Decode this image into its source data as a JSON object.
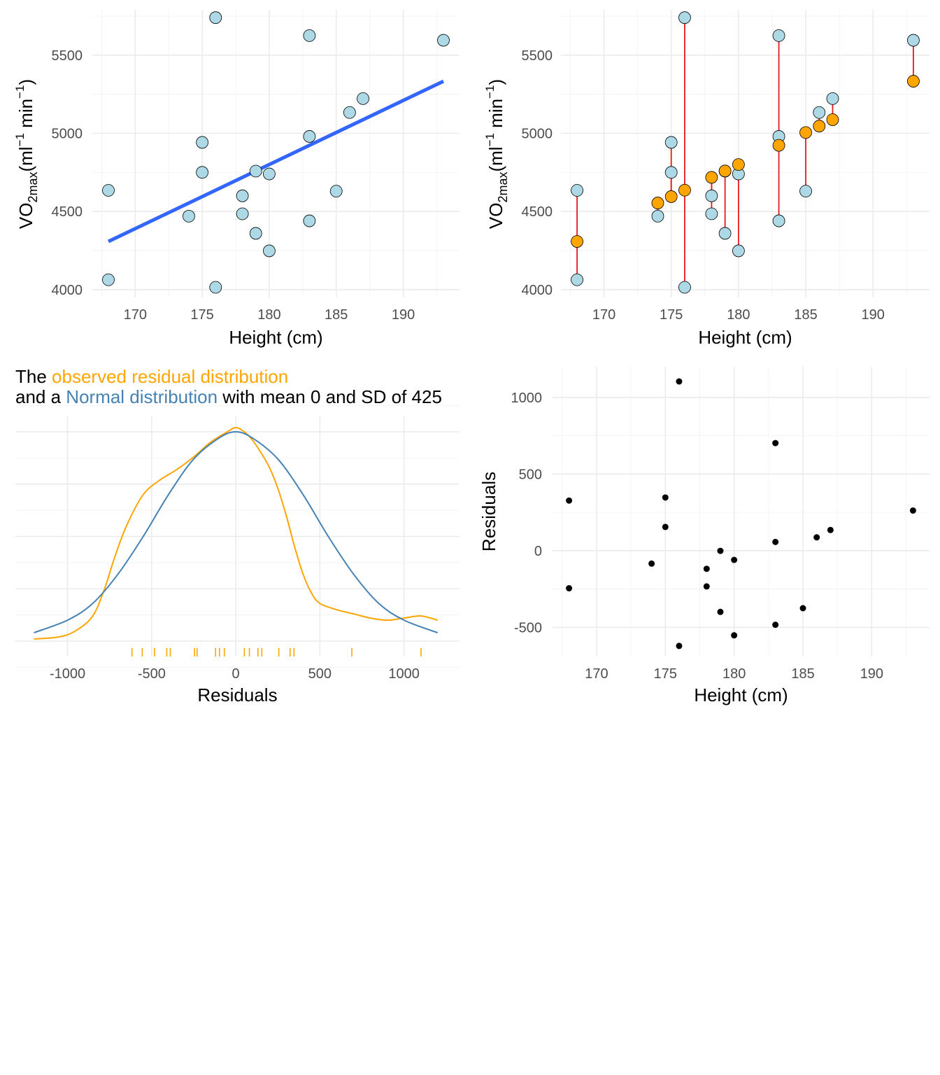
{
  "colors": {
    "obs_fill": "#add8e6",
    "fit_line": "#3366ff",
    "pred_fill": "#ffa500",
    "resid_segment": "#e41a1c",
    "observed_density": "#ffa500",
    "normal_density": "#4682b4",
    "point_black": "#000000"
  },
  "chart_data": [
    {
      "type": "scatter",
      "panel": "top-left",
      "xlabel": "Height (cm)",
      "ylabel": {
        "base": "VO",
        "sub": "2max",
        "unit_open": "(ml",
        "sup1": "−1",
        "mid": " min",
        "sup2": "−1",
        "close": ")"
      },
      "xlim": [
        166.8,
        194.2
      ],
      "ylim": [
        3950,
        5790
      ],
      "x_ticks": [
        170,
        175,
        180,
        185,
        190
      ],
      "x_tick_labels": [
        "170",
        "175",
        "180",
        "185",
        "190"
      ],
      "y_ticks": [
        4000,
        4500,
        5000,
        5500
      ],
      "y_tick_labels": [
        "4000",
        "4500",
        "5000",
        "5500"
      ],
      "grid": true,
      "points": {
        "x": [
          168,
          168,
          174,
          175,
          175,
          176,
          176,
          178,
          178,
          179,
          179,
          180,
          180,
          183,
          183,
          183,
          185,
          186,
          187,
          193
        ],
        "y": [
          4063,
          4635,
          4470,
          4750,
          4942,
          4015,
          5740,
          4485,
          4600,
          4360,
          4758,
          4248,
          4740,
          4440,
          4980,
          5625,
          4630,
          5133,
          5222,
          5595
        ]
      },
      "fit_line": {
        "x": [
          168,
          193
        ],
        "y": [
          4308,
          5333
        ]
      }
    },
    {
      "type": "scatter",
      "panel": "top-right",
      "xlabel": "Height (cm)",
      "ylabel": {
        "base": "VO",
        "sub": "2max",
        "unit_open": "(ml",
        "sup1": "−1",
        "mid": " min",
        "sup2": "−1",
        "close": ")"
      },
      "xlim": [
        166.8,
        194.2
      ],
      "ylim": [
        3950,
        5790
      ],
      "x_ticks": [
        170,
        175,
        180,
        185,
        190
      ],
      "x_tick_labels": [
        "170",
        "175",
        "180",
        "185",
        "190"
      ],
      "y_ticks": [
        4000,
        4500,
        5000,
        5500
      ],
      "y_tick_labels": [
        "4000",
        "4500",
        "5000",
        "5500"
      ],
      "grid": true,
      "observed": {
        "x": [
          168,
          168,
          174,
          175,
          175,
          176,
          176,
          178,
          178,
          179,
          179,
          180,
          180,
          183,
          183,
          183,
          185,
          186,
          187,
          193
        ],
        "y": [
          4063,
          4635,
          4470,
          4750,
          4942,
          4015,
          5740,
          4485,
          4600,
          4360,
          4758,
          4248,
          4740,
          4440,
          4980,
          5625,
          4630,
          5133,
          5222,
          5595
        ]
      },
      "predicted": {
        "x": [
          168,
          174,
          175,
          176,
          178,
          179,
          180,
          183,
          185,
          186,
          187,
          193
        ],
        "y": [
          4308,
          4554,
          4595,
          4636,
          4718,
          4759,
          4800,
          4923,
          5005,
          5046,
          5087,
          5333
        ]
      }
    },
    {
      "type": "line",
      "panel": "bottom-left",
      "title_parts": [
        {
          "text": "The ",
          "color": "#000000"
        },
        {
          "text": "observed residual distribution",
          "color": "#ffa500"
        }
      ],
      "title_line2_parts": [
        {
          "text": "and a ",
          "color": "#000000"
        },
        {
          "text": "Normal distribution",
          "color": "#4682b4"
        },
        {
          "text": " with mean 0 and SD of 425",
          "color": "#000000"
        }
      ],
      "xlabel": "Residuals",
      "xlim": [
        -1310,
        1330
      ],
      "ylim": [
        0.0,
        1.0
      ],
      "x_ticks": [
        -1000,
        -500,
        0,
        500,
        1000
      ],
      "x_tick_labels": [
        "-1000",
        "-500",
        "0",
        "500",
        "1000"
      ],
      "grid": true,
      "series": [
        {
          "color": "#ffa500",
          "x": [
            -1200,
            -1050,
            -950,
            -850,
            -780,
            -720,
            -650,
            -550,
            -450,
            -350,
            -250,
            -150,
            -50,
            0,
            50,
            100,
            150,
            200,
            250,
            300,
            350,
            400,
            450,
            500,
            600,
            700,
            800,
            900,
            1000,
            1100,
            1200
          ],
          "y": [
            0.01,
            0.02,
            0.05,
            0.12,
            0.25,
            0.4,
            0.55,
            0.7,
            0.77,
            0.82,
            0.88,
            0.95,
            1.0,
            1.02,
            1.0,
            0.96,
            0.9,
            0.83,
            0.73,
            0.6,
            0.45,
            0.32,
            0.23,
            0.18,
            0.15,
            0.13,
            0.11,
            0.1,
            0.11,
            0.12,
            0.1
          ]
        },
        {
          "color": "#4682b4",
          "x": [
            -1200,
            -1000,
            -850,
            -700,
            -550,
            -400,
            -250,
            -100,
            0,
            100,
            250,
            400,
            550,
            700,
            850,
            1000,
            1200
          ],
          "y": [
            0.04,
            0.1,
            0.18,
            0.32,
            0.5,
            0.7,
            0.87,
            0.97,
            1.0,
            0.97,
            0.87,
            0.7,
            0.5,
            0.32,
            0.18,
            0.1,
            0.04
          ]
        }
      ],
      "rug_x": [
        -617,
        -556,
        -483,
        -410,
        -389,
        -245,
        -230,
        -120,
        -97,
        -68,
        51,
        81,
        132,
        155,
        256,
        323,
        346,
        690,
        1101
      ]
    },
    {
      "type": "scatter",
      "panel": "bottom-right",
      "xlabel": "Height (cm)",
      "ylabel": "Residuals",
      "xlim": [
        166.8,
        194.2
      ],
      "ylim": [
        -690,
        1200
      ],
      "x_ticks": [
        170,
        175,
        180,
        185,
        190
      ],
      "x_tick_labels": [
        "170",
        "175",
        "180",
        "185",
        "190"
      ],
      "y_ticks": [
        -500,
        0,
        500,
        1000
      ],
      "y_tick_labels": [
        "-500",
        "0",
        "500",
        "1000"
      ],
      "grid": true,
      "points": {
        "x": [
          168,
          168,
          174,
          175,
          175,
          176,
          176,
          178,
          178,
          179,
          179,
          180,
          180,
          183,
          183,
          183,
          185,
          186,
          187,
          193
        ],
        "y": [
          -245,
          327,
          -84,
          155,
          347,
          -621,
          1104,
          -233,
          -118,
          -399,
          -1,
          -552,
          -60,
          -483,
          57,
          702,
          -375,
          87,
          135,
          262
        ]
      }
    }
  ]
}
